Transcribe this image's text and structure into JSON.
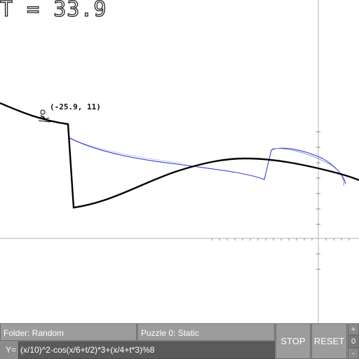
{
  "hud": {
    "timer_text": "T = 33.9"
  },
  "player": {
    "coord_label": "(-25.9, 11)"
  },
  "controls": {
    "folder_label": "Folder: Random",
    "puzzle_label": "Puzzle 0: Static",
    "eq_prefix": "Y=",
    "equation": "(x/10)^2-cos(x/6+t/2)*3+(x/4+t*3)%8",
    "stop_label": "STOP",
    "reset_label": "RESET",
    "zoom_in_label": "+",
    "zoom_value": "0",
    "zoom_out_label": "-"
  },
  "colors": {
    "axis": "#b0b0b0",
    "curve_current": "#000000",
    "curve_previous": "#2233cc",
    "panel": "#8c8c8c"
  },
  "icons": {
    "player": "stick-figure-sledder"
  }
}
